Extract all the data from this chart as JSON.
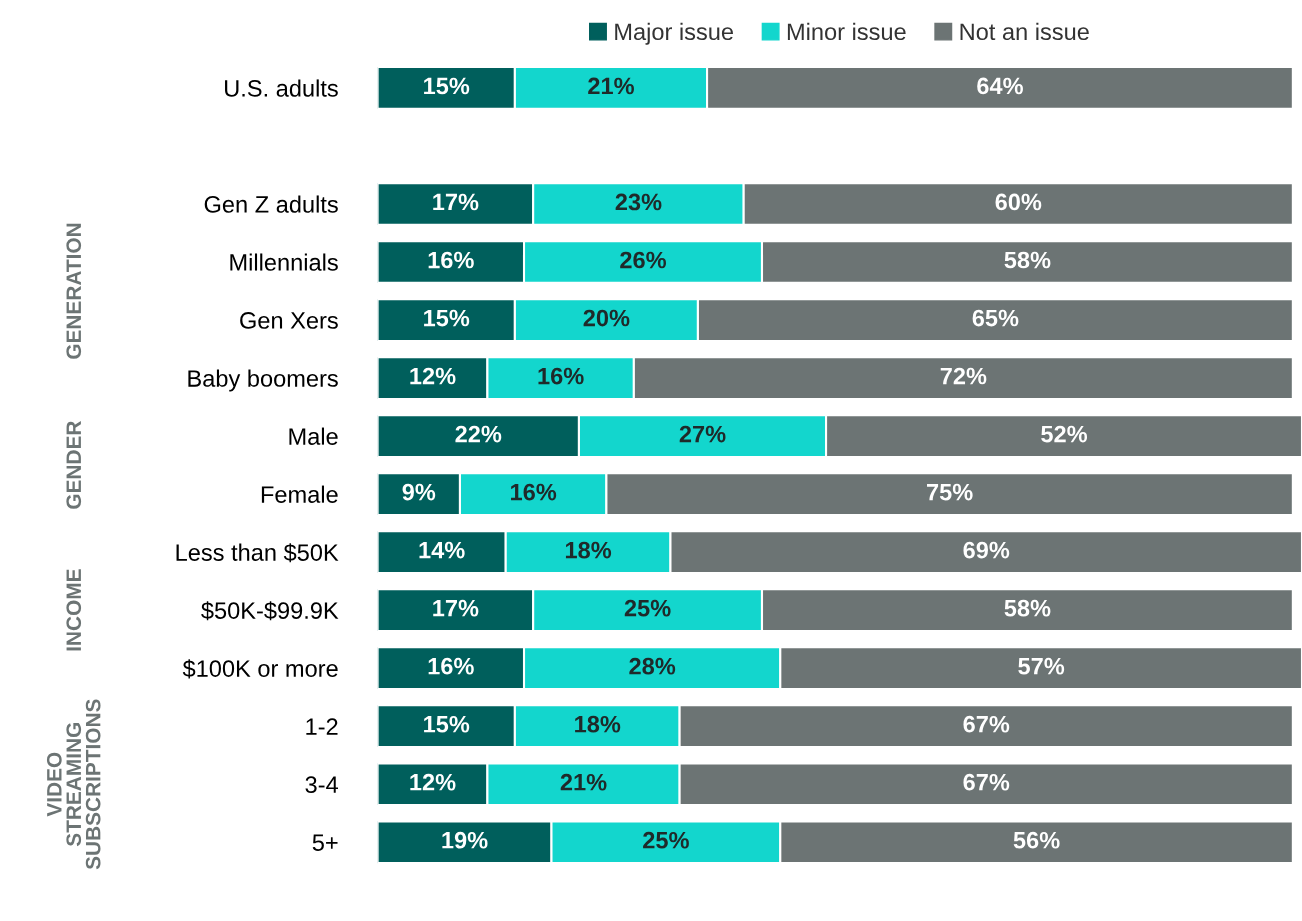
{
  "chart_data": {
    "type": "bar",
    "orientation": "horizontal",
    "stacked": true,
    "legend": "top",
    "grid": false,
    "tick_labels": "y",
    "categories": [
      "U.S. adults",
      null,
      "Gen Z adults",
      "Millennials",
      "Gen Xers",
      "Baby boomers",
      "Male",
      "Female",
      "Less than $50K",
      "$50K-$99.9K",
      "$100K or more",
      "1-2",
      "3-4",
      "5+"
    ],
    "series": [
      {
        "name": "Major issue",
        "color": "#005f5c",
        "values": [
          15,
          null,
          17,
          16,
          15,
          12,
          22,
          9,
          14,
          17,
          16,
          15,
          12,
          19
        ],
        "value_labels": [
          "15%",
          null,
          "17%",
          "16%",
          "15%",
          "12%",
          "22%",
          "9%",
          "14%",
          "17%",
          "16%",
          "15%",
          "12%",
          "19%"
        ]
      },
      {
        "name": "Minor issue",
        "color": "#13d6cd",
        "values": [
          21,
          null,
          23,
          26,
          20,
          16,
          27,
          16,
          18,
          25,
          28,
          18,
          21,
          25
        ],
        "value_labels": [
          "21%",
          null,
          "23%",
          "26%",
          "20%",
          "16%",
          "27%",
          "16%",
          "18%",
          "25%",
          "28%",
          "18%",
          "21%",
          "25%"
        ]
      },
      {
        "name": "Not an issue",
        "color": "#6c7474",
        "values": [
          64,
          null,
          60,
          58,
          65,
          72,
          52,
          75,
          69,
          58,
          57,
          67,
          67,
          56
        ],
        "value_labels": [
          "64%",
          null,
          "60%",
          "58%",
          "65%",
          "72%",
          "52%",
          "75%",
          "69%",
          "58%",
          "57%",
          "67%",
          "67%",
          "56%"
        ]
      }
    ],
    "annotations": [
      "GENERATION",
      "GENDER",
      "INCOME",
      "VIDEO\nSTREAMING\nSUBSCRIPTIONS"
    ]
  }
}
